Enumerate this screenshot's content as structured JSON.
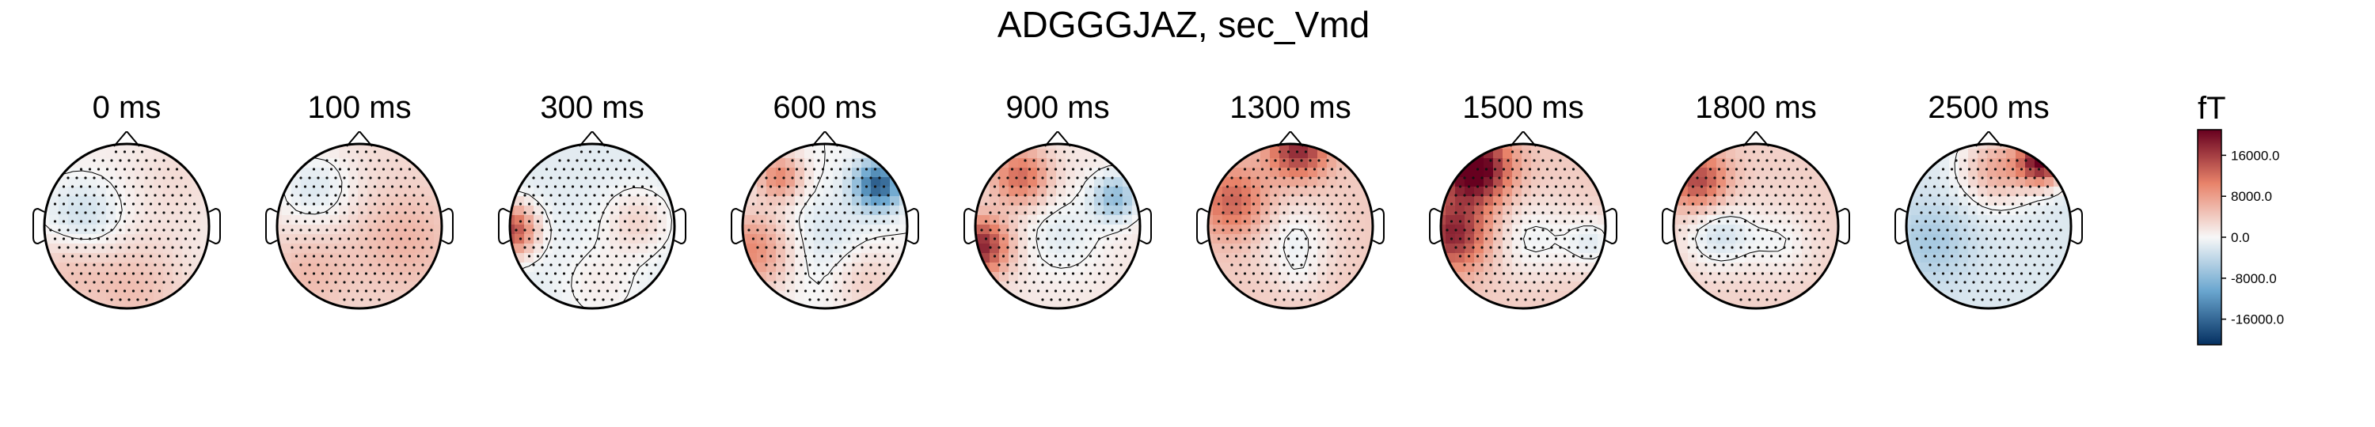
{
  "title": "ADGGGJAZ, sec_Vmd",
  "colorbar": {
    "unit": "fT",
    "ticks": [
      16000.0,
      8000.0,
      0.0,
      -8000.0,
      -16000.0
    ],
    "tick_labels": [
      "16000.0",
      "8000.0",
      "0.0",
      "-8000.0",
      "-16000.0"
    ],
    "range": [
      -21000,
      21000
    ],
    "colormap": "RdBu_r",
    "colors": {
      "max": "#67001f",
      "pos": "#e8836a",
      "zero": "#f7f7f7",
      "neg": "#6aa6cf",
      "min": "#053061"
    }
  },
  "chart_data": {
    "type": "heatmap",
    "title": "ADGGGJAZ, sec_Vmd",
    "unit": "fT",
    "times": [
      "0 ms",
      "100 ms",
      "300 ms",
      "600 ms",
      "900 ms",
      "1300 ms",
      "1500 ms",
      "1800 ms",
      "2500 ms"
    ],
    "topomaps": [
      {
        "time": "0 ms",
        "base": 1000,
        "blobs": [
          {
            "region": "left-center",
            "u": -0.55,
            "v": -0.05,
            "s": 0.35,
            "value": -5000
          },
          {
            "region": "bottom",
            "u": 0.1,
            "v": 0.75,
            "s": 0.45,
            "value": 4000
          },
          {
            "region": "left-bottom",
            "u": -0.7,
            "v": 0.45,
            "s": 0.35,
            "value": 4000
          },
          {
            "region": "top-right",
            "u": 0.6,
            "v": -0.55,
            "s": 0.35,
            "value": 1500
          }
        ]
      },
      {
        "time": "100 ms",
        "base": 2500,
        "blobs": [
          {
            "region": "left-front",
            "u": -0.55,
            "v": -0.45,
            "s": 0.35,
            "value": -4500
          },
          {
            "region": "right",
            "u": 0.55,
            "v": 0.2,
            "s": 0.45,
            "value": 3500
          },
          {
            "region": "left-bottom",
            "u": -0.6,
            "v": 0.55,
            "s": 0.35,
            "value": 3000
          }
        ]
      },
      {
        "time": "300 ms",
        "base": -1500,
        "blobs": [
          {
            "region": "left-edge",
            "u": -1.0,
            "v": 0.05,
            "s": 0.22,
            "value": 17000
          },
          {
            "region": "right",
            "u": 0.55,
            "v": -0.05,
            "s": 0.28,
            "value": 4500
          },
          {
            "region": "bottom",
            "u": 0.1,
            "v": 0.7,
            "s": 0.35,
            "value": 2500
          }
        ]
      },
      {
        "time": "600 ms",
        "base": 0,
        "blobs": [
          {
            "region": "left",
            "u": -0.9,
            "v": 0.3,
            "s": 0.35,
            "value": 10000
          },
          {
            "region": "top-left",
            "u": -0.55,
            "v": -0.6,
            "s": 0.2,
            "value": 10000
          },
          {
            "region": "top-right",
            "u": 0.65,
            "v": -0.5,
            "s": 0.2,
            "value": -17000
          },
          {
            "region": "center",
            "u": 0.0,
            "v": 0.15,
            "s": 0.4,
            "value": -2500
          },
          {
            "region": "bottom-right",
            "u": 0.5,
            "v": 0.65,
            "s": 0.3,
            "value": 4000
          }
        ]
      },
      {
        "time": "900 ms",
        "base": 1500,
        "blobs": [
          {
            "region": "left-edge",
            "u": -0.95,
            "v": 0.25,
            "s": 0.25,
            "value": 17000
          },
          {
            "region": "top-left",
            "u": -0.45,
            "v": -0.6,
            "s": 0.25,
            "value": 11000
          },
          {
            "region": "top-right",
            "u": 0.7,
            "v": -0.35,
            "s": 0.2,
            "value": -9000
          },
          {
            "region": "center",
            "u": 0.05,
            "v": 0.1,
            "s": 0.35,
            "value": -3000
          }
        ]
      },
      {
        "time": "1300 ms",
        "base": 4000,
        "blobs": [
          {
            "region": "top",
            "u": 0.1,
            "v": -0.95,
            "s": 0.25,
            "value": 14000
          },
          {
            "region": "left",
            "u": -0.7,
            "v": -0.3,
            "s": 0.3,
            "value": 9000
          },
          {
            "region": "center",
            "u": 0.05,
            "v": 0.15,
            "s": 0.32,
            "value": -4500
          },
          {
            "region": "bottom",
            "u": 0.1,
            "v": 0.6,
            "s": 0.2,
            "value": -2000
          }
        ]
      },
      {
        "time": "1500 ms",
        "base": 4000,
        "blobs": [
          {
            "region": "top-left",
            "u": -0.6,
            "v": -0.7,
            "s": 0.3,
            "value": 20000
          },
          {
            "region": "left",
            "u": -0.85,
            "v": 0.1,
            "s": 0.3,
            "value": 14000
          },
          {
            "region": "center",
            "u": 0.1,
            "v": 0.15,
            "s": 0.35,
            "value": -4500
          },
          {
            "region": "right",
            "u": 0.85,
            "v": 0.2,
            "s": 0.25,
            "value": -5000
          }
        ]
      },
      {
        "time": "1800 ms",
        "base": 3500,
        "blobs": [
          {
            "region": "top-left",
            "u": -0.7,
            "v": -0.55,
            "s": 0.25,
            "value": 12000
          },
          {
            "region": "left",
            "u": -0.45,
            "v": 0.1,
            "s": 0.3,
            "value": -6000
          },
          {
            "region": "bottom-right",
            "u": 0.3,
            "v": 0.2,
            "s": 0.3,
            "value": -3500
          }
        ]
      },
      {
        "time": "2500 ms",
        "base": -2000,
        "blobs": [
          {
            "region": "top-right",
            "u": 0.65,
            "v": -0.8,
            "s": 0.2,
            "value": 22000
          },
          {
            "region": "top",
            "u": 0.1,
            "v": -0.7,
            "s": 0.3,
            "value": 9000
          },
          {
            "region": "left",
            "u": -0.7,
            "v": 0.2,
            "s": 0.35,
            "value": -4000
          }
        ]
      }
    ]
  }
}
